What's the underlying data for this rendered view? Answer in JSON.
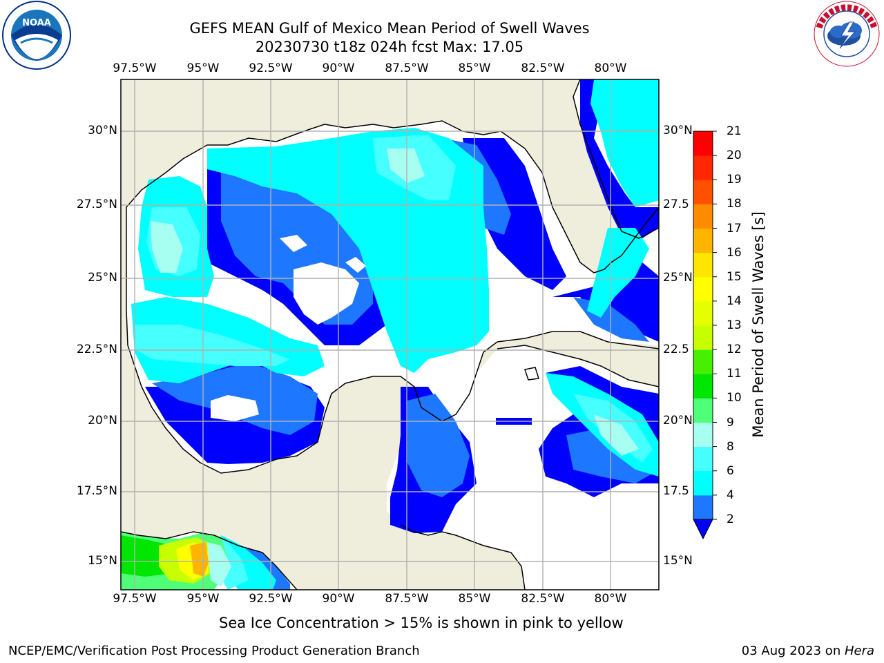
{
  "title_line1": "GEFS MEAN Gulf of Mexico Mean Period of Swell Waves",
  "title_line2": "20230730 t18z 024h fcst   Max: 17.05",
  "longitude_ticks": [
    "97.5°W",
    "95°W",
    "92.5°W",
    "90°W",
    "87.5°W",
    "85°W",
    "82.5°W",
    "80°W"
  ],
  "latitude_ticks_left": [
    "30°N",
    "27.5°N",
    "25°N",
    "22.5°N",
    "20°N",
    "17.5°N",
    "15°N"
  ],
  "latitude_ticks_right": [
    "30°N",
    "27.5",
    "25°N",
    "22.5",
    "20°N",
    "17.5",
    "15°N"
  ],
  "colorbar": {
    "label": "Mean Period of Swell Waves [s]",
    "ticks": [
      "2",
      "4",
      "6",
      "8",
      "9",
      "10",
      "11",
      "12",
      "13",
      "14",
      "15",
      "16",
      "17",
      "18",
      "19",
      "20",
      "21"
    ],
    "colors": [
      "#0000ff",
      "#1e78ff",
      "#00ffff",
      "#46ffff",
      "#a6fff0",
      "#50ff78",
      "#00e600",
      "#46f000",
      "#c8ff00",
      "#e6ff00",
      "#ffff00",
      "#ffe600",
      "#ffb400",
      "#ff8c00",
      "#ff5000",
      "#ff2800",
      "#ff0000"
    ]
  },
  "sea_ice_note": "Sea Ice Concentration > 15% is shown in pink to yellow",
  "footer_left": "NCEP/EMC/Verification Post Processing Product Generation Branch",
  "footer_date": "03 Aug 2023 on ",
  "footer_machine": "Hera",
  "logos": {
    "noaa": "NOAA",
    "noaa_ring": "NATIONAL OCEANIC AND ATMOSPHERIC ADMINISTRATION · U.S. DEPARTMENT OF COMMERCE",
    "nws_ring": "NATIONAL WEATHER SERVICE"
  },
  "map_colors": {
    "land": "#efeedc",
    "grid": "#b0b0b0"
  }
}
